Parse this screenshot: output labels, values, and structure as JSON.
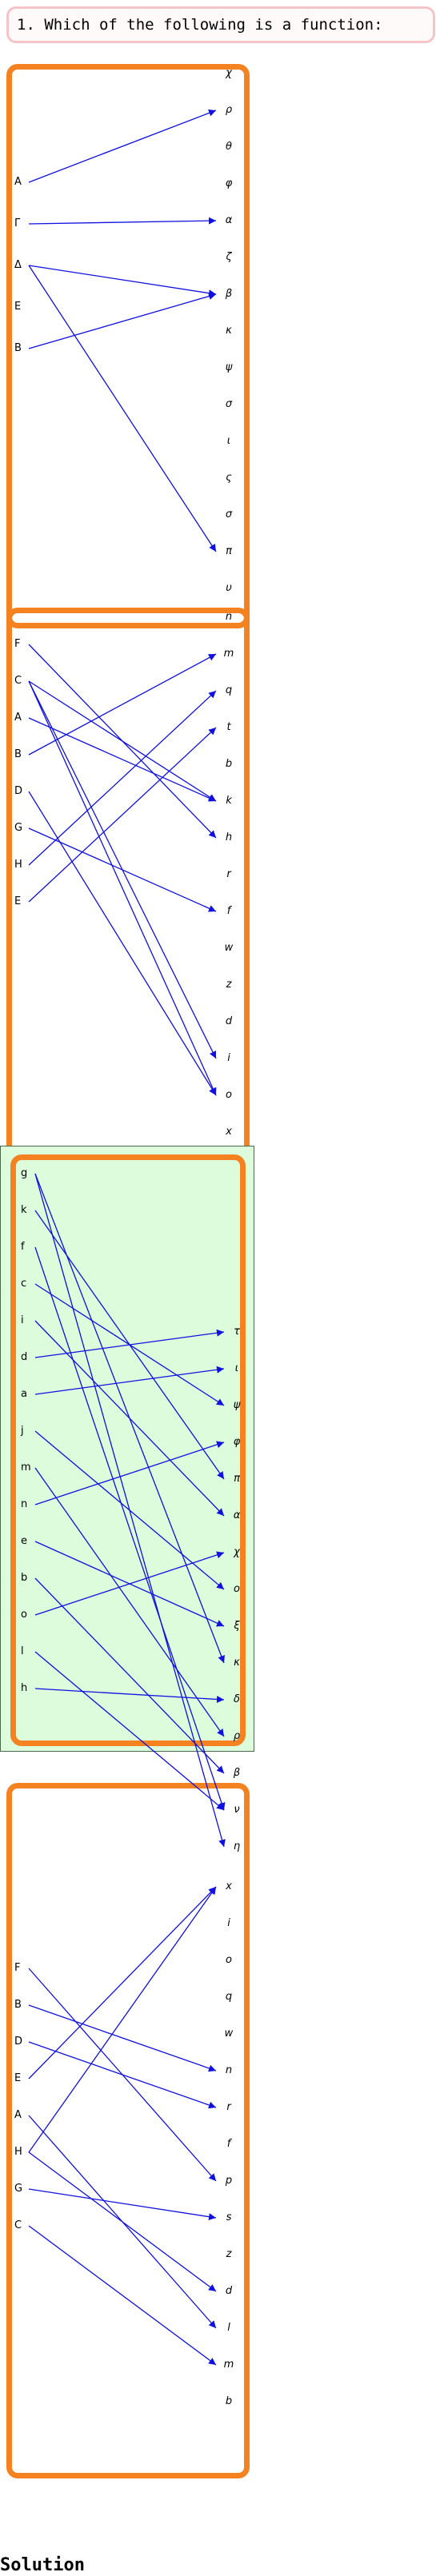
{
  "question": "1. Which of the following is a function:",
  "solution_label": "Solution",
  "colors": {
    "panel_border": "#f58220",
    "arrow": "#1010e0",
    "selected_bg": "#dcfcdc",
    "question_border": "#f4c4c8"
  },
  "options": [
    {
      "left": [
        "A",
        "Γ",
        "Δ",
        "E",
        "B"
      ],
      "right": [
        "χ",
        "ρ",
        "θ",
        "φ",
        "α",
        "ζ",
        "β",
        "κ",
        "ψ",
        "σ",
        "ι",
        "ς",
        "σ",
        "π",
        "υ"
      ],
      "edges": [
        [
          0,
          1
        ],
        [
          1,
          4
        ],
        [
          2,
          6
        ],
        [
          2,
          13
        ],
        [
          4,
          6
        ]
      ],
      "selected": false
    },
    {
      "left": [
        "F",
        "C",
        "A",
        "B",
        "D",
        "G",
        "H",
        "E"
      ],
      "right": [
        "n",
        "m",
        "q",
        "t",
        "b",
        "k",
        "h",
        "r",
        "f",
        "w",
        "z",
        "d",
        "i",
        "o",
        "x"
      ],
      "edges": [
        [
          0,
          6
        ],
        [
          1,
          5
        ],
        [
          1,
          12
        ],
        [
          1,
          13
        ],
        [
          2,
          5
        ],
        [
          3,
          1
        ],
        [
          4,
          13
        ],
        [
          5,
          8
        ],
        [
          6,
          2
        ],
        [
          7,
          3
        ]
      ],
      "selected": false
    },
    {
      "left": [
        "g",
        "k",
        "f",
        "c",
        "i",
        "d",
        "a",
        "j",
        "m",
        "n",
        "e",
        "b",
        "o",
        "l",
        "h"
      ],
      "right": [
        "τ",
        "ι",
        "ψ",
        "φ",
        "π",
        "α",
        "χ",
        "ο",
        "ξ",
        "κ",
        "δ",
        "ρ",
        "β",
        "ν",
        "η"
      ],
      "edges": [
        [
          0,
          9
        ],
        [
          0,
          14
        ],
        [
          1,
          4
        ],
        [
          2,
          13
        ],
        [
          3,
          2
        ],
        [
          4,
          5
        ],
        [
          5,
          0
        ],
        [
          6,
          1
        ],
        [
          7,
          7
        ],
        [
          8,
          11
        ],
        [
          9,
          3
        ],
        [
          10,
          8
        ],
        [
          11,
          12
        ],
        [
          12,
          6
        ],
        [
          13,
          13
        ],
        [
          14,
          10
        ]
      ],
      "selected": true
    },
    {
      "left": [
        "F",
        "B",
        "D",
        "E",
        "A",
        "H",
        "G",
        "C"
      ],
      "right": [
        "x",
        "i",
        "o",
        "q",
        "w",
        "n",
        "r",
        "f",
        "p",
        "s",
        "z",
        "d",
        "l",
        "m",
        "b"
      ],
      "edges": [
        [
          0,
          8
        ],
        [
          1,
          5
        ],
        [
          2,
          6
        ],
        [
          3,
          0
        ],
        [
          4,
          12
        ],
        [
          5,
          0
        ],
        [
          5,
          11
        ],
        [
          6,
          9
        ],
        [
          7,
          13
        ]
      ],
      "selected": false
    }
  ]
}
